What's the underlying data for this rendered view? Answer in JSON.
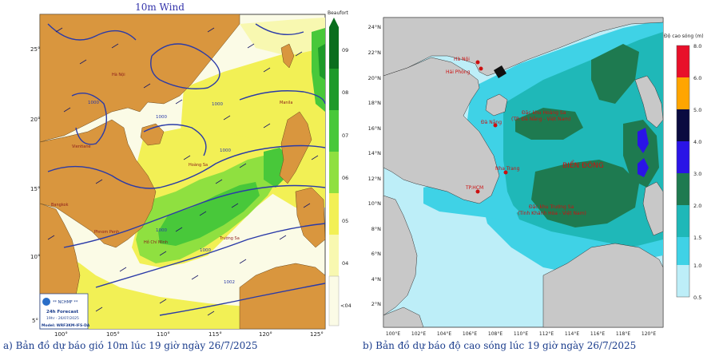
{
  "left_map": {
    "title": "10m Wind",
    "colorbar_title": "Beaufort",
    "colorbar_labels": [
      "09",
      "08",
      "07",
      "06",
      "05",
      "04",
      "<04"
    ],
    "colorbar_colors": [
      "#0a6e1e",
      "#1e9a2a",
      "#48c83a",
      "#8fe040",
      "#f2f055",
      "#f8f8b0",
      "#fbfbe6"
    ],
    "lat_labels": [
      "25°",
      "20°",
      "15°",
      "10°",
      "5°"
    ],
    "lon_labels": [
      "100°",
      "105°",
      "110°",
      "115°",
      "120°",
      "125°"
    ],
    "isobar_labels": [
      "1000",
      "1000",
      "1000",
      "1000",
      "1000",
      "1000",
      "1002"
    ],
    "place_labels": [
      "Hà Nội",
      "Hoàng Sa",
      "Trường Sa",
      "Bangkok",
      "Vientiane",
      "Manila",
      "Hồ Chí Minh",
      "Phnom Penh"
    ],
    "forecast_box": {
      "org": "** NCHMF **",
      "line1": "24h Forecast",
      "line2": "19hr - 26/07/2025",
      "line3": "Model: WRF3KM-IFS-DA"
    }
  },
  "right_map": {
    "lat_labels": [
      "24°N",
      "22°N",
      "20°N",
      "18°N",
      "16°N",
      "14°N",
      "12°N",
      "10°N",
      "8°N",
      "6°N",
      "4°N",
      "2°N"
    ],
    "lon_labels": [
      "100°E",
      "102°E",
      "104°E",
      "106°E",
      "108°E",
      "110°E",
      "112°E",
      "114°E",
      "116°E",
      "118°E",
      "120°E"
    ],
    "colorbar_title": "Độ cao sóng (m)",
    "colorbar_labels": [
      "8.0",
      "6.0",
      "5.0",
      "4.0",
      "3.0",
      "2.0",
      "1.5",
      "1.0",
      "0.5"
    ],
    "colorbar_colors": [
      "#e8102a",
      "#ffa500",
      "#0a0a40",
      "#2a14e6",
      "#1e7a50",
      "#1fb8b8",
      "#3fd2e6",
      "#bdeef8"
    ],
    "cities": [
      "Hà Nội",
      "Hải Phòng",
      "Đà Nẵng",
      "Nha Trang",
      "TP.HCM"
    ],
    "annotations": {
      "hoang_sa_1": "Đặc khu Hoàng Sa",
      "hoang_sa_2": "(TP. Đà Nẵng - Việt Nam)",
      "truong_sa_1": "Đặc khu Trường Sa",
      "truong_sa_2": "(Tỉnh Khánh Hòa - Việt Nam)",
      "sea_name": "BIỂN ĐÔNG"
    }
  },
  "caption": {
    "left": "a) Bản đồ dự báo gió 10m lúc 19 giờ ngày 26/7/2025",
    "right": "b) Bản đồ dự báo độ cao sóng lúc 19 giờ ngày 26/7/2025"
  }
}
